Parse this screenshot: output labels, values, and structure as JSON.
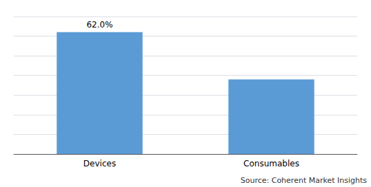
{
  "chart_data": {
    "type": "bar",
    "categories": [
      "Devices",
      "Consumables"
    ],
    "values": [
      62.0,
      38.0
    ],
    "value_labels": [
      "62.0%",
      null
    ],
    "data_labels": true,
    "color": "#5B9BD5",
    "ylim": [
      0,
      70
    ],
    "yticks": [
      0,
      10,
      20,
      30,
      40,
      50,
      60,
      70
    ],
    "grid": true,
    "tick_labels": "x",
    "source": "Source: Coherent Market Insights"
  }
}
